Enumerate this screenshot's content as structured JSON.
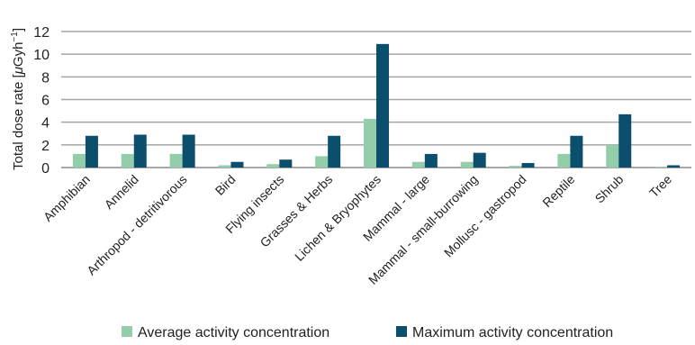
{
  "chart_data": {
    "type": "bar",
    "ylabel": "Total dose rate [μGyh⁻¹]",
    "ylabel_main": "Total dose rate [",
    "ylabel_mu": "μ",
    "ylabel_unit": "Gyh",
    "ylabel_sup": "−1",
    "ylabel_close": "]",
    "ylim": [
      0,
      12
    ],
    "yticks": [
      0,
      2,
      4,
      6,
      8,
      10,
      12
    ],
    "grid": true,
    "legend_position": "bottom",
    "categories": [
      "Amphibian",
      "Annelid",
      "Arthropod - detritivorous",
      "Bird",
      "Flying insects",
      "Grasses & Herbs",
      "Lichen & Bryophytes",
      "Mammal - large",
      "Mammal - small-burrowing",
      "Mollusc - gastropod",
      "Reptile",
      "Shrub",
      "Tree"
    ],
    "series": [
      {
        "name": "Average activity concentration",
        "color": "#93cdaa",
        "values": [
          1.2,
          1.2,
          1.2,
          0.2,
          0.3,
          1.0,
          4.3,
          0.5,
          0.5,
          0.15,
          1.2,
          2.0,
          0.05
        ]
      },
      {
        "name": "Maximum activity concentration",
        "color": "#0b4f6c",
        "values": [
          2.8,
          2.9,
          2.9,
          0.5,
          0.7,
          2.8,
          10.9,
          1.2,
          1.3,
          0.4,
          2.8,
          4.7,
          0.2
        ]
      }
    ]
  }
}
